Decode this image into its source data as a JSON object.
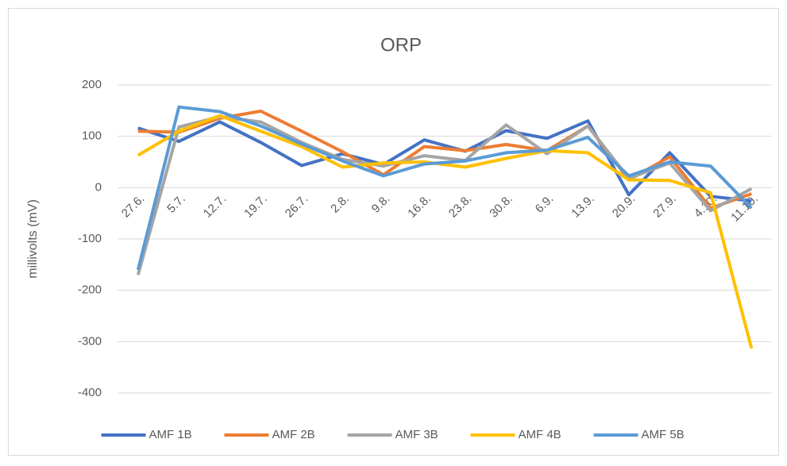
{
  "chart_data": {
    "type": "line",
    "title": "ORP",
    "y_label": "millivolts (mV)",
    "categories": [
      "27.6.",
      "5.7.",
      "12.7.",
      "19.7.",
      "26.7.",
      "2.8.",
      "9.8.",
      "16.8.",
      "23.8.",
      "30.8.",
      "6.9.",
      "13.9.",
      "20.9.",
      "27.9.",
      "4.10.",
      "11.10."
    ],
    "series": [
      {
        "name": "AMF 1B",
        "color": "#4472c4",
        "values": [
          116,
          90,
          128,
          88,
          43,
          66,
          45,
          93,
          71,
          111,
          96,
          130,
          -14,
          68,
          -17,
          -26
        ]
      },
      {
        "name": "AMF 2B",
        "color": "#ed7d31",
        "values": [
          110,
          108,
          135,
          149,
          110,
          70,
          25,
          80,
          72,
          84,
          72,
          120,
          15,
          60,
          -40,
          -12
        ]
      },
      {
        "name": "AMF 3B",
        "color": "#a5a5a5",
        "values": [
          -170,
          118,
          138,
          128,
          88,
          55,
          42,
          62,
          53,
          122,
          66,
          120,
          18,
          48,
          -45,
          -2
        ]
      },
      {
        "name": "AMF 4B",
        "color": "#ffc000",
        "values": [
          63,
          110,
          140,
          110,
          80,
          40,
          48,
          50,
          40,
          57,
          72,
          68,
          15,
          14,
          -10,
          -313
        ]
      },
      {
        "name": "AMF 5B",
        "color": "#5b9bd5",
        "values": [
          -160,
          157,
          148,
          120,
          85,
          52,
          23,
          46,
          52,
          68,
          73,
          98,
          23,
          50,
          42,
          -40
        ]
      }
    ],
    "ylim": [
      -400,
      200
    ],
    "yticks": [
      -400,
      -300,
      -200,
      -100,
      0,
      100,
      200
    ],
    "grid": true,
    "legend": "bottom"
  }
}
